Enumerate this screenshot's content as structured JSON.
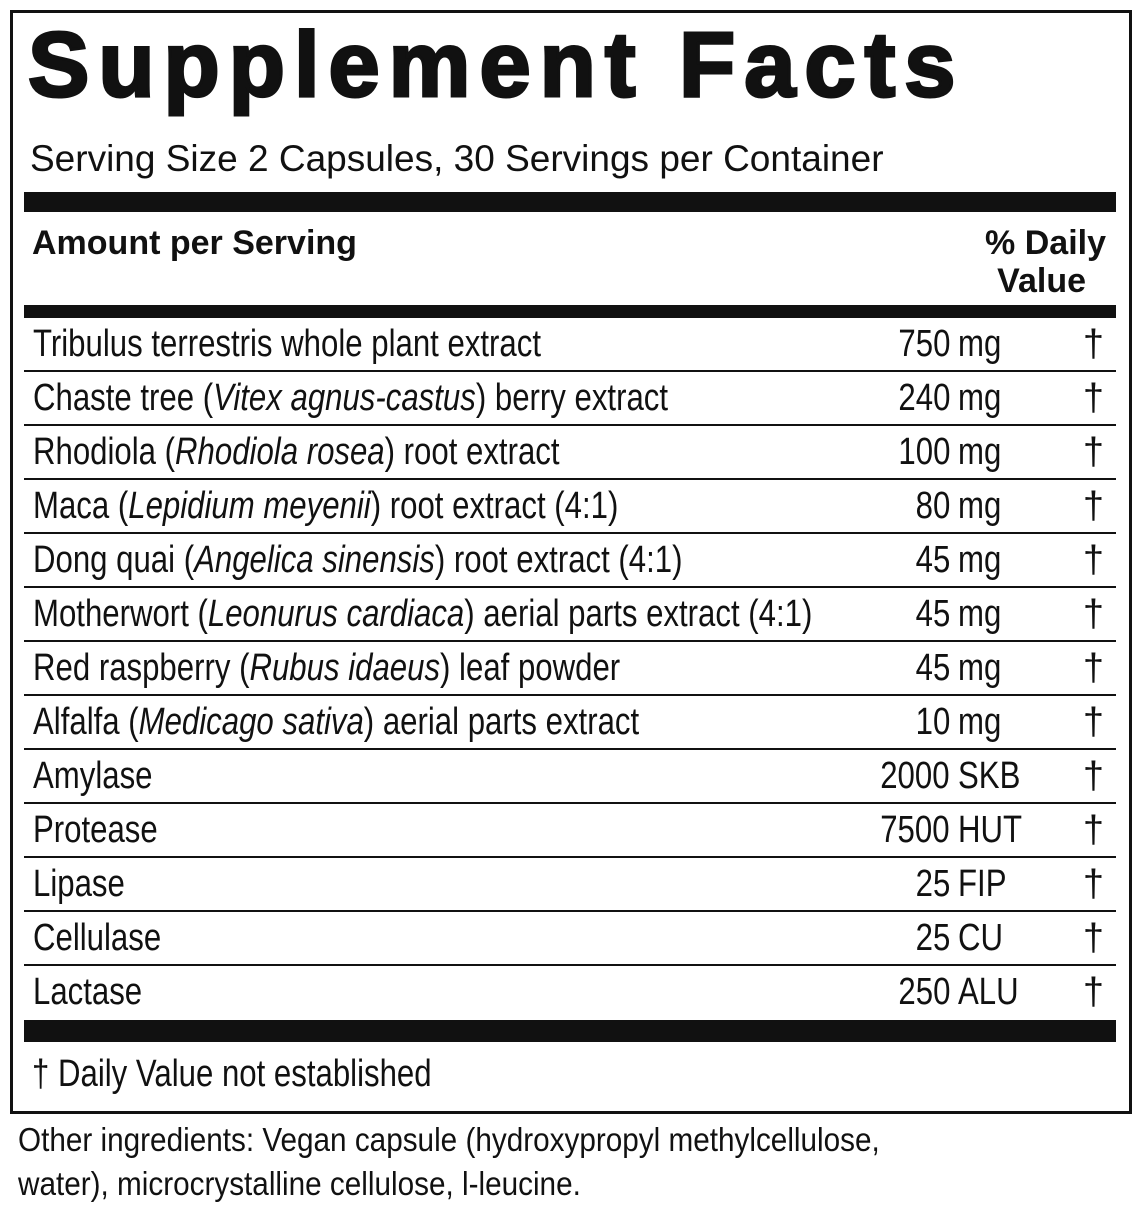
{
  "title": "Supplement Facts",
  "serving": "Serving Size 2 Capsules, 30 Servings per Container",
  "header": {
    "amount": "Amount per Serving",
    "daily_value": [
      "% Daily",
      "Value"
    ]
  },
  "rows": [
    {
      "name": [
        {
          "text": "Tribulus terrestris whole plant extract",
          "italic": false
        }
      ],
      "amount": 750,
      "unit": "mg",
      "dv": "†"
    },
    {
      "name": [
        {
          "text": "Chaste tree (",
          "italic": false
        },
        {
          "text": "Vitex agnus-castus",
          "italic": true
        },
        {
          "text": ") berry extract",
          "italic": false
        }
      ],
      "amount": 240,
      "unit": "mg",
      "dv": "†"
    },
    {
      "name": [
        {
          "text": "Rhodiola (",
          "italic": false
        },
        {
          "text": "Rhodiola rosea",
          "italic": true
        },
        {
          "text": ") root extract",
          "italic": false
        }
      ],
      "amount": 100,
      "unit": "mg",
      "dv": "†"
    },
    {
      "name": [
        {
          "text": "Maca (",
          "italic": false
        },
        {
          "text": "Lepidium meyenii",
          "italic": true
        },
        {
          "text": ") root extract (4:1)",
          "italic": false
        }
      ],
      "amount": 80,
      "unit": "mg",
      "dv": "†"
    },
    {
      "name": [
        {
          "text": "Dong quai (",
          "italic": false
        },
        {
          "text": "Angelica sinensis",
          "italic": true
        },
        {
          "text": ") root extract (4:1)",
          "italic": false
        }
      ],
      "amount": 45,
      "unit": "mg",
      "dv": "†"
    },
    {
      "name": [
        {
          "text": "Motherwort (",
          "italic": false
        },
        {
          "text": "Leonurus cardiaca",
          "italic": true
        },
        {
          "text": ") aerial parts extract (4:1)",
          "italic": false
        }
      ],
      "amount": 45,
      "unit": "mg",
      "dv": "†"
    },
    {
      "name": [
        {
          "text": "Red raspberry (",
          "italic": false
        },
        {
          "text": "Rubus idaeus",
          "italic": true
        },
        {
          "text": ") leaf powder",
          "italic": false
        }
      ],
      "amount": 45,
      "unit": "mg",
      "dv": "†"
    },
    {
      "name": [
        {
          "text": "Alfalfa (",
          "italic": false
        },
        {
          "text": "Medicago sativa",
          "italic": true
        },
        {
          "text": ") aerial parts extract",
          "italic": false
        }
      ],
      "amount": 10,
      "unit": "mg",
      "dv": "†"
    },
    {
      "name": [
        {
          "text": "Amylase",
          "italic": false
        }
      ],
      "amount": 2000,
      "unit": "SKB",
      "dv": "†"
    },
    {
      "name": [
        {
          "text": "Protease",
          "italic": false
        }
      ],
      "amount": 7500,
      "unit": "HUT",
      "dv": "†"
    },
    {
      "name": [
        {
          "text": "Lipase",
          "italic": false
        }
      ],
      "amount": 25,
      "unit": "FIP",
      "dv": "†"
    },
    {
      "name": [
        {
          "text": "Cellulase",
          "italic": false
        }
      ],
      "amount": 25,
      "unit": "CU",
      "dv": "†"
    },
    {
      "name": [
        {
          "text": "Lactase",
          "italic": false
        }
      ],
      "amount": 250,
      "unit": "ALU",
      "dv": "†"
    }
  ],
  "footnote": "† Daily Value not established",
  "other_ingredients": [
    "Other ingredients: Vegan capsule (hydroxypropyl methylcellulose,",
    "water), microcrystalline cellulose, l-leucine."
  ]
}
